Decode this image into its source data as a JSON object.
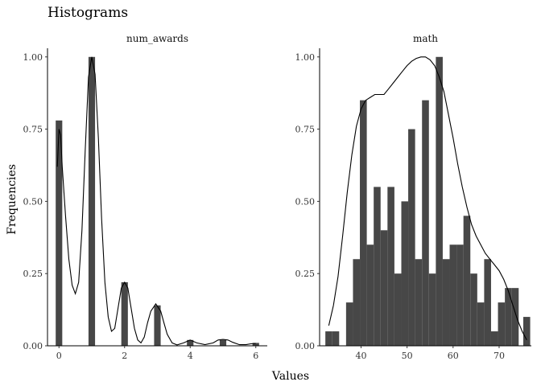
{
  "chart_data": {
    "type": "bar",
    "title": "Histograms",
    "xlabel": "Values",
    "ylabel": "Frequencies",
    "panels": [
      {
        "name": "num_awards",
        "xlim": [
          -0.35,
          6.35
        ],
        "ylim": [
          0,
          1.03
        ],
        "x_ticks": [
          0,
          2,
          4,
          6
        ],
        "y_ticks": [
          "0.00",
          "0.25",
          "0.50",
          "0.75",
          "1.00"
        ],
        "bin_width": 0.2,
        "bars": [
          {
            "x": 0,
            "y": 0.78
          },
          {
            "x": 1,
            "y": 1.0
          },
          {
            "x": 2,
            "y": 0.22
          },
          {
            "x": 3,
            "y": 0.14
          },
          {
            "x": 4,
            "y": 0.02
          },
          {
            "x": 5,
            "y": 0.02
          },
          {
            "x": 6,
            "y": 0.01
          }
        ],
        "density": [
          [
            -0.05,
            0.62
          ],
          [
            0.0,
            0.75
          ],
          [
            0.05,
            0.73
          ],
          [
            0.1,
            0.62
          ],
          [
            0.2,
            0.45
          ],
          [
            0.3,
            0.3
          ],
          [
            0.4,
            0.21
          ],
          [
            0.5,
            0.18
          ],
          [
            0.6,
            0.22
          ],
          [
            0.7,
            0.4
          ],
          [
            0.8,
            0.68
          ],
          [
            0.9,
            0.93
          ],
          [
            1.0,
            1.0
          ],
          [
            1.1,
            0.94
          ],
          [
            1.2,
            0.72
          ],
          [
            1.3,
            0.44
          ],
          [
            1.4,
            0.22
          ],
          [
            1.5,
            0.1
          ],
          [
            1.6,
            0.05
          ],
          [
            1.7,
            0.06
          ],
          [
            1.8,
            0.13
          ],
          [
            1.9,
            0.2
          ],
          [
            2.0,
            0.22
          ],
          [
            2.1,
            0.2
          ],
          [
            2.2,
            0.13
          ],
          [
            2.3,
            0.06
          ],
          [
            2.4,
            0.02
          ],
          [
            2.5,
            0.01
          ],
          [
            2.6,
            0.03
          ],
          [
            2.7,
            0.08
          ],
          [
            2.8,
            0.12
          ],
          [
            2.95,
            0.145
          ],
          [
            3.1,
            0.12
          ],
          [
            3.2,
            0.08
          ],
          [
            3.3,
            0.04
          ],
          [
            3.45,
            0.01
          ],
          [
            3.6,
            0.003
          ],
          [
            3.8,
            0.01
          ],
          [
            4.0,
            0.02
          ],
          [
            4.2,
            0.01
          ],
          [
            4.45,
            0.004
          ],
          [
            4.7,
            0.01
          ],
          [
            4.85,
            0.02
          ],
          [
            5.0,
            0.022
          ],
          [
            5.15,
            0.02
          ],
          [
            5.3,
            0.012
          ],
          [
            5.5,
            0.004
          ],
          [
            5.7,
            0.004
          ],
          [
            5.85,
            0.007
          ],
          [
            6.0,
            0.008
          ]
        ]
      },
      {
        "name": "math",
        "xlim": [
          31,
          77
        ],
        "ylim": [
          0,
          1.03
        ],
        "x_ticks": [
          40,
          50,
          60,
          70
        ],
        "y_ticks": [
          "0.00",
          "0.25",
          "0.50",
          "0.75",
          "1.00"
        ],
        "bin_width": 1.5,
        "bars": [
          {
            "x": 33.0,
            "y": 0.05
          },
          {
            "x": 34.5,
            "y": 0.05
          },
          {
            "x": 37.5,
            "y": 0.15
          },
          {
            "x": 39.0,
            "y": 0.3
          },
          {
            "x": 40.5,
            "y": 0.85
          },
          {
            "x": 42.0,
            "y": 0.35
          },
          {
            "x": 43.5,
            "y": 0.55
          },
          {
            "x": 45.0,
            "y": 0.4
          },
          {
            "x": 46.5,
            "y": 0.55
          },
          {
            "x": 48.0,
            "y": 0.25
          },
          {
            "x": 49.5,
            "y": 0.5
          },
          {
            "x": 51.0,
            "y": 0.75
          },
          {
            "x": 52.5,
            "y": 0.3
          },
          {
            "x": 54.0,
            "y": 0.85
          },
          {
            "x": 55.5,
            "y": 0.25
          },
          {
            "x": 57.0,
            "y": 1.0
          },
          {
            "x": 58.5,
            "y": 0.3
          },
          {
            "x": 60.0,
            "y": 0.35
          },
          {
            "x": 61.5,
            "y": 0.35
          },
          {
            "x": 63.0,
            "y": 0.45
          },
          {
            "x": 64.5,
            "y": 0.25
          },
          {
            "x": 66.0,
            "y": 0.15
          },
          {
            "x": 67.5,
            "y": 0.3
          },
          {
            "x": 69.0,
            "y": 0.05
          },
          {
            "x": 70.5,
            "y": 0.15
          },
          {
            "x": 72.0,
            "y": 0.2
          },
          {
            "x": 73.5,
            "y": 0.2
          },
          {
            "x": 76.0,
            "y": 0.1
          }
        ],
        "density": [
          [
            33,
            0.07
          ],
          [
            34,
            0.14
          ],
          [
            35,
            0.24
          ],
          [
            36,
            0.38
          ],
          [
            37,
            0.53
          ],
          [
            38,
            0.66
          ],
          [
            39,
            0.76
          ],
          [
            40,
            0.82
          ],
          [
            41,
            0.85
          ],
          [
            42,
            0.86
          ],
          [
            43,
            0.87
          ],
          [
            44,
            0.87
          ],
          [
            45,
            0.87
          ],
          [
            46,
            0.89
          ],
          [
            47,
            0.91
          ],
          [
            48,
            0.93
          ],
          [
            49,
            0.95
          ],
          [
            50,
            0.97
          ],
          [
            51,
            0.985
          ],
          [
            52,
            0.995
          ],
          [
            53,
            1.0
          ],
          [
            54,
            1.0
          ],
          [
            55,
            0.99
          ],
          [
            56,
            0.97
          ],
          [
            57,
            0.93
          ],
          [
            58,
            0.88
          ],
          [
            59,
            0.8
          ],
          [
            60,
            0.72
          ],
          [
            61,
            0.63
          ],
          [
            62,
            0.55
          ],
          [
            63,
            0.48
          ],
          [
            64,
            0.42
          ],
          [
            65,
            0.38
          ],
          [
            66,
            0.35
          ],
          [
            67,
            0.32
          ],
          [
            68,
            0.3
          ],
          [
            69,
            0.28
          ],
          [
            70,
            0.26
          ],
          [
            71,
            0.23
          ],
          [
            72,
            0.19
          ],
          [
            73,
            0.14
          ],
          [
            74,
            0.09
          ],
          [
            75,
            0.05
          ],
          [
            76,
            0.02
          ]
        ]
      }
    ]
  }
}
